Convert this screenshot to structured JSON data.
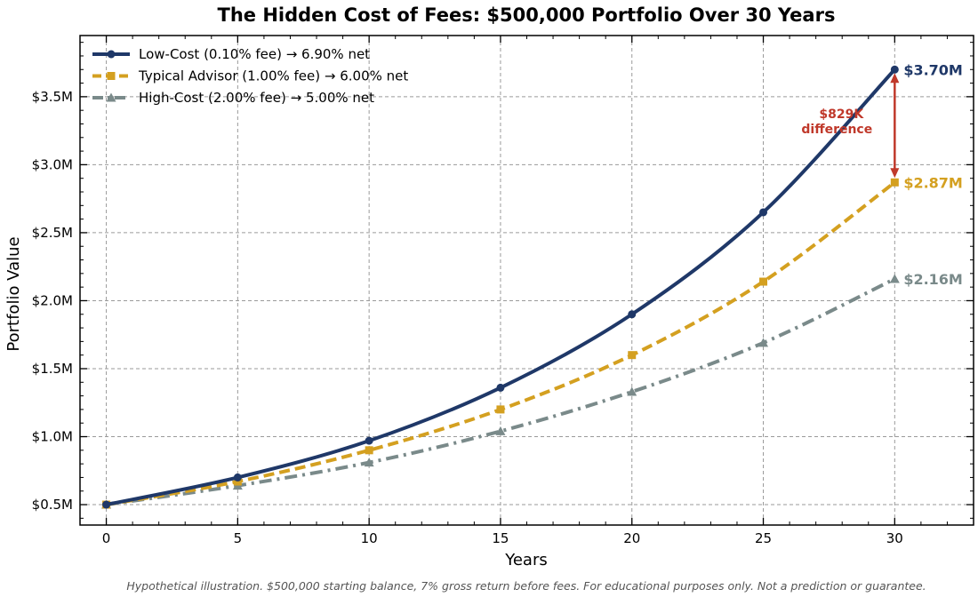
{
  "chart_data": {
    "type": "line",
    "title": "The Hidden Cost of Fees: $500,000 Portfolio Over 30 Years",
    "xlabel": "Years",
    "ylabel": "Portfolio Value",
    "xlim": [
      -1,
      33
    ],
    "ylim": [
      0.35,
      3.95
    ],
    "x_ticks": [
      0,
      5,
      10,
      15,
      20,
      25,
      30
    ],
    "y_ticks": [
      0.5,
      1.0,
      1.5,
      2.0,
      2.5,
      3.0,
      3.5
    ],
    "y_tick_labels": [
      "$0.5M",
      "$1.0M",
      "$1.5M",
      "$2.0M",
      "$2.5M",
      "$3.0M",
      "$3.5M"
    ],
    "grid": true,
    "legend_position": "top-left",
    "series": [
      {
        "name": "Low-Cost (0.10% fee) → 6.90% net",
        "color": "#1f3868",
        "style": "solid",
        "marker": "circle",
        "x": [
          0,
          5,
          10,
          15,
          20,
          25,
          30
        ],
        "values": [
          0.5,
          0.7,
          0.97,
          1.36,
          1.9,
          2.65,
          3.7
        ],
        "end_label": "$3.70M"
      },
      {
        "name": "Typical Advisor (1.00% fee) → 6.00% net",
        "color": "#d4a020",
        "style": "dashed",
        "marker": "square",
        "x": [
          0,
          5,
          10,
          15,
          20,
          25,
          30
        ],
        "values": [
          0.5,
          0.67,
          0.9,
          1.2,
          1.6,
          2.14,
          2.87
        ],
        "end_label": "$2.87M"
      },
      {
        "name": "High-Cost (2.00% fee) → 5.00% net",
        "color": "#7a8a8a",
        "style": "dashdot",
        "marker": "triangle",
        "x": [
          0,
          5,
          10,
          15,
          20,
          25,
          30
        ],
        "values": [
          0.5,
          0.64,
          0.81,
          1.04,
          1.33,
          1.69,
          2.16
        ],
        "end_label": "$2.16M"
      }
    ],
    "annotation": {
      "line1": "$829K",
      "line2": "difference",
      "color": "#c0392b",
      "x": 30,
      "y_from": 3.7,
      "y_to": 2.87
    },
    "footnote": "Hypothetical illustration. $500,000 starting balance, 7% gross return before fees. For educational purposes only. Not a prediction or guarantee."
  }
}
